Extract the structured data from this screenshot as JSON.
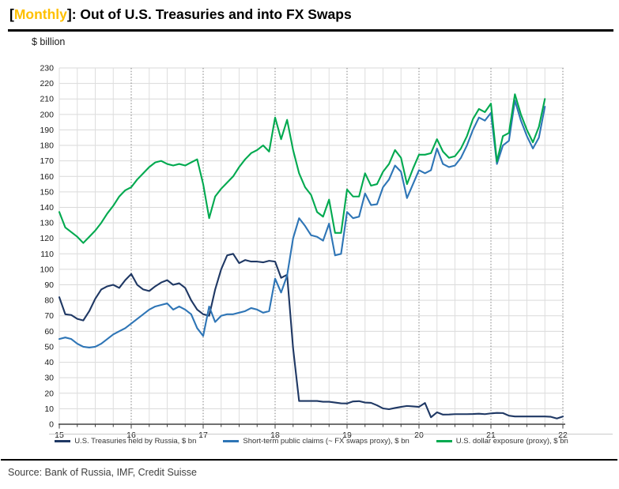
{
  "title": {
    "bracket_open": "[",
    "highlight": "Monthly",
    "bracket_close": "]",
    "rest": ": Out of U.S. Treasuries and into FX Swaps",
    "highlight_color": "#FFC000"
  },
  "unit_label": "$ billion",
  "source_line": "Source: Bank of Russia, IMF, Credit Suisse",
  "chart_data": {
    "type": "line",
    "title": "[Monthly]: Out of U.S. Treasuries and into FX Swaps",
    "ylabel": "$ billion",
    "ylim": [
      0,
      230
    ],
    "y_tick_step": 10,
    "x_ticks": [
      15,
      16,
      17,
      18,
      19,
      20,
      21,
      22
    ],
    "x_minor_tick_interval_years": 0.25,
    "grid": {
      "horizontal": true,
      "vertical_quarterly": true,
      "vertical_yearly_dotted": true
    },
    "legend_position": "bottom",
    "x_encoding": {
      "start_decimal_year": 15.0,
      "step_months": 1,
      "note": "x of point i = start + i/12 (15 = Jan 2015)"
    },
    "series": [
      {
        "name": "U.S. Treasuries held by Russia, $ bn",
        "color": "#1F3864",
        "values": [
          82,
          71,
          70.5,
          68,
          67,
          73,
          81,
          87,
          89,
          90,
          88,
          93,
          97,
          90,
          87,
          86,
          89,
          91.5,
          93,
          90,
          91,
          88,
          80,
          74,
          71,
          70,
          87,
          100,
          109,
          110,
          104,
          106,
          105,
          105,
          104.5,
          105.5,
          105,
          94.5,
          96.5,
          49,
          15,
          15,
          15,
          15,
          14.5,
          14.5,
          14,
          13.5,
          13.4,
          14.7,
          14.9,
          14,
          13.8,
          12.2,
          10.2,
          9.7,
          10.5,
          11.2,
          11.8,
          11.5,
          11.2,
          13.7,
          4.5,
          7.7,
          6.2,
          6.3,
          6.5,
          6.5,
          6.5,
          6.6,
          6.8,
          6.5,
          7,
          7.3,
          7.2,
          5.5,
          5,
          5,
          5,
          5,
          5,
          5,
          4.8,
          3.7,
          5
        ]
      },
      {
        "name": "Short-term public claims (~ FX swaps proxy), $ bn",
        "color": "#2E75B6",
        "values": [
          55,
          56,
          55,
          52,
          50,
          49.5,
          50,
          52,
          55,
          58,
          60,
          62,
          65,
          68,
          71,
          74,
          76,
          77,
          78,
          74,
          76,
          74,
          71,
          62,
          57,
          76,
          66,
          70,
          71,
          71,
          72,
          73,
          75,
          74,
          72,
          73,
          94,
          85,
          96,
          120,
          133,
          128,
          122,
          121,
          118.5,
          129.5,
          109,
          110,
          137,
          133,
          134,
          149,
          141.5,
          142,
          153,
          158,
          167,
          163,
          146,
          155,
          164,
          162,
          164,
          178,
          168,
          166,
          167,
          172,
          180,
          190,
          198,
          196,
          201,
          168,
          180,
          183,
          209,
          196,
          186,
          178,
          185,
          205
        ]
      },
      {
        "name": "U.S. dollar exposure (proxy), $ bn",
        "color": "#00A94F",
        "values": [
          137,
          127,
          124,
          121,
          117,
          121,
          125,
          130,
          136,
          141,
          147,
          151,
          153,
          158,
          162,
          166,
          169,
          170,
          168,
          167,
          168,
          167,
          169,
          171,
          155,
          133,
          147,
          152,
          156,
          160,
          166,
          171,
          175,
          177,
          180,
          176,
          198,
          184,
          196.5,
          177,
          162,
          153,
          148,
          137,
          134,
          145,
          123.5,
          123.5,
          151.5,
          147,
          147,
          162,
          154,
          155,
          163,
          168,
          177,
          172,
          155,
          165,
          174,
          174,
          175,
          184,
          176,
          172,
          173,
          178,
          186,
          197,
          203.5,
          201.5,
          207,
          169.5,
          186,
          188,
          213,
          200,
          190,
          182,
          192,
          210
        ]
      }
    ]
  }
}
